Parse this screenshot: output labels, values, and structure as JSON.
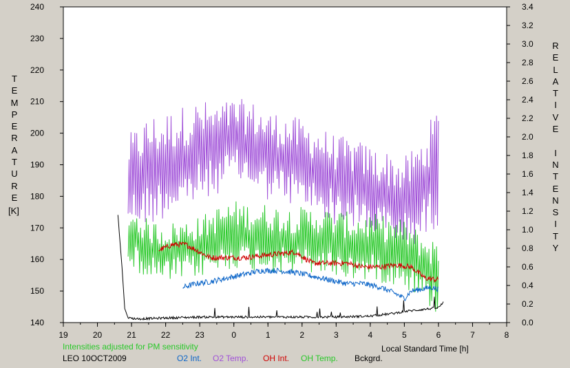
{
  "chart_data": {
    "type": "line",
    "title": "",
    "xlabel": "Local Standard Time [h]",
    "ylabel_left": "TEMPERATURE",
    "ylabel_left_unit": "[K]",
    "ylabel_right": "RELATIVE INTENSITY",
    "note": "Intensities adjusted for PM sensitivity",
    "station_date": "LEO 10OCT2009",
    "xticks": [
      "19",
      "20",
      "21",
      "22",
      "23",
      "0",
      "1",
      "2",
      "3",
      "4",
      "5",
      "6",
      "7",
      "8"
    ],
    "xlim": [
      19,
      32
    ],
    "ylim_left": [
      140,
      240
    ],
    "ylim_right": [
      0.0,
      3.4
    ],
    "yticks_left": [
      "140",
      "150",
      "160",
      "170",
      "180",
      "190",
      "200",
      "210",
      "220",
      "230",
      "240"
    ],
    "yticks_right": [
      "0.0",
      "0.2",
      "0.4",
      "0.6",
      "0.8",
      "1.0",
      "1.2",
      "1.4",
      "1.6",
      "1.8",
      "2.0",
      "2.2",
      "2.4",
      "2.6",
      "2.8",
      "3.0",
      "3.2",
      "3.4"
    ],
    "grid": false,
    "legend": [
      {
        "name": "O2 Int.",
        "color": "#0a64c8"
      },
      {
        "name": "O2 Temp.",
        "color": "#a050d8"
      },
      {
        "name": "OH Int.",
        "color": "#d00000"
      },
      {
        "name": "OH Temp.",
        "color": "#28c828"
      },
      {
        "name": "Bckgrd.",
        "color": "#000000"
      }
    ],
    "series": [
      {
        "name": "O2 Temp.",
        "axis": "left",
        "color": "#a050d8",
        "x": [
          20.9,
          21.5,
          22.0,
          22.5,
          23.0,
          23.5,
          24.0,
          24.5,
          25.0,
          25.5,
          26.0,
          26.5,
          27.0,
          27.5,
          28.0,
          28.5,
          29.0,
          29.5,
          30.0
        ],
        "y": [
          185,
          188,
          190,
          192,
          194,
          195,
          198,
          196,
          193,
          192,
          190,
          188,
          185,
          184,
          182,
          180,
          178,
          182,
          190
        ],
        "amp": [
          12,
          15,
          14,
          14,
          14,
          12,
          11,
          12,
          12,
          12,
          12,
          12,
          12,
          12,
          12,
          12,
          12,
          14,
          16
        ]
      },
      {
        "name": "OH Temp.",
        "axis": "left",
        "color": "#28c828",
        "x": [
          20.9,
          21.5,
          22.0,
          22.5,
          23.0,
          23.5,
          24.0,
          24.5,
          25.0,
          25.5,
          26.0,
          26.5,
          27.0,
          27.5,
          28.0,
          28.5,
          29.0,
          29.5,
          30.0
        ],
        "y": [
          168,
          163,
          162,
          163,
          164,
          166,
          168,
          167,
          167,
          166,
          166,
          166,
          165,
          164,
          164,
          163,
          162,
          158,
          154
        ],
        "amp": [
          8,
          8,
          8,
          8,
          8,
          9,
          9,
          9,
          9,
          9,
          9,
          9,
          9,
          9,
          9,
          9,
          9,
          9,
          10
        ]
      },
      {
        "name": "OH Int.",
        "axis": "right",
        "color": "#d00000",
        "x": [
          21.8,
          22.2,
          22.6,
          22.9,
          23.3,
          23.8,
          24.3,
          24.8,
          25.3,
          25.8,
          26.3,
          26.8,
          27.3,
          27.8,
          28.3,
          28.8,
          29.2,
          29.6,
          30.0
        ],
        "y": [
          0.78,
          0.84,
          0.84,
          0.78,
          0.7,
          0.7,
          0.7,
          0.72,
          0.74,
          0.76,
          0.64,
          0.64,
          0.64,
          0.6,
          0.6,
          0.62,
          0.6,
          0.48,
          0.46
        ]
      },
      {
        "name": "O2 Int.",
        "axis": "right",
        "color": "#0a64c8",
        "x": [
          22.5,
          22.9,
          23.3,
          23.8,
          24.3,
          24.8,
          25.3,
          25.8,
          26.3,
          26.8,
          27.3,
          27.8,
          28.3,
          28.7,
          29.0,
          29.2,
          29.5,
          29.8,
          30.0
        ],
        "y": [
          0.38,
          0.42,
          0.44,
          0.48,
          0.52,
          0.56,
          0.56,
          0.54,
          0.5,
          0.46,
          0.42,
          0.42,
          0.38,
          0.32,
          0.26,
          0.34,
          0.36,
          0.38,
          0.36
        ]
      },
      {
        "name": "Bckgrd.",
        "axis": "right",
        "color": "#000000",
        "x": [
          20.6,
          20.72,
          20.8,
          20.9,
          21.2,
          22.0,
          23.0,
          24.0,
          25.0,
          26.0,
          27.0,
          28.0,
          28.7,
          29.0,
          29.5,
          30.0,
          30.15
        ],
        "y": [
          1.16,
          0.6,
          0.15,
          0.05,
          0.04,
          0.05,
          0.06,
          0.06,
          0.06,
          0.06,
          0.06,
          0.07,
          0.1,
          0.12,
          0.14,
          0.16,
          0.22
        ]
      }
    ]
  }
}
